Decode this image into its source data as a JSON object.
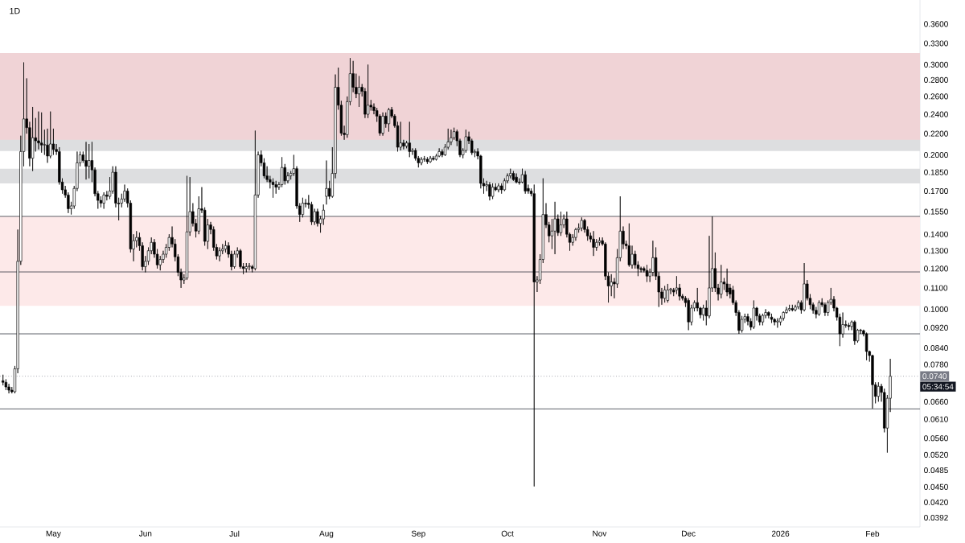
{
  "chart_data": {
    "type": "candlestick",
    "title": "1D",
    "color": "#000000",
    "log": true,
    "xlim": [
      "2025-04-13",
      "2026-02-17"
    ],
    "ylim": [
      0.0376,
      0.401
    ],
    "xticks": [
      {
        "value": "2025-05-01",
        "label": "May"
      },
      {
        "value": "2025-06-01",
        "label": "Jun"
      },
      {
        "value": "2025-07-01",
        "label": "Jul"
      },
      {
        "value": "2025-08-01",
        "label": "Aug"
      },
      {
        "value": "2025-09-01",
        "label": "Sep"
      },
      {
        "value": "2025-10-01",
        "label": "Oct"
      },
      {
        "value": "2025-11-01",
        "label": "Nov"
      },
      {
        "value": "2025-12-01",
        "label": "Dec"
      },
      {
        "value": "2026-01-01",
        "label": "2026"
      },
      {
        "value": "2026-02-01",
        "label": "Feb"
      }
    ],
    "yticks": [
      {
        "value": 0.0392,
        "label": "0.0392"
      },
      {
        "value": 0.042,
        "label": "0.0420"
      },
      {
        "value": 0.045,
        "label": "0.0450"
      },
      {
        "value": 0.0485,
        "label": "0.0485"
      },
      {
        "value": 0.052,
        "label": "0.0520"
      },
      {
        "value": 0.056,
        "label": "0.0560"
      },
      {
        "value": 0.061,
        "label": "0.0610"
      },
      {
        "value": 0.066,
        "label": "0.0660"
      },
      {
        "value": 0.078,
        "label": "0.0780"
      },
      {
        "value": 0.084,
        "label": "0.0840"
      },
      {
        "value": 0.092,
        "label": "0.0920"
      },
      {
        "value": 0.1,
        "label": "0.1000"
      },
      {
        "value": 0.11,
        "label": "0.1100"
      },
      {
        "value": 0.12,
        "label": "0.1200"
      },
      {
        "value": 0.13,
        "label": "0.1300"
      },
      {
        "value": 0.14,
        "label": "0.1400"
      },
      {
        "value": 0.155,
        "label": "0.1550"
      },
      {
        "value": 0.17,
        "label": "0.1700"
      },
      {
        "value": 0.185,
        "label": "0.1850"
      },
      {
        "value": 0.2,
        "label": "0.2000"
      },
      {
        "value": 0.22,
        "label": "0.2200"
      },
      {
        "value": 0.24,
        "label": "0.2400"
      },
      {
        "value": 0.26,
        "label": "0.2600"
      },
      {
        "value": 0.28,
        "label": "0.2800"
      },
      {
        "value": 0.3,
        "label": "0.3000"
      },
      {
        "value": 0.33,
        "label": "0.3300"
      },
      {
        "value": 0.36,
        "label": "0.3600"
      }
    ],
    "bands": [
      {
        "axis": "y",
        "from": 0.2035,
        "to": 0.227,
        "color": "#dddee0"
      },
      {
        "axis": "y",
        "from": 0.176,
        "to": 0.188,
        "color": "#dddee0"
      },
      {
        "axis": "y",
        "from": 0.214,
        "to": 0.316,
        "color": "#f0d3d6"
      },
      {
        "axis": "y",
        "from": 0.1015,
        "to": 0.1517,
        "color": "#fde9e9"
      }
    ],
    "ref_lines": [
      {
        "axis": "y",
        "value": 0.1517,
        "color": "#363a45",
        "line_style": "solid"
      },
      {
        "axis": "y",
        "value": 0.1182,
        "color": "#363a45",
        "line_style": "solid"
      },
      {
        "axis": "y",
        "value": 0.0895,
        "color": "#363a45",
        "line_style": "solid"
      },
      {
        "axis": "y",
        "value": 0.0639,
        "color": "#363a45",
        "line_style": "solid"
      },
      {
        "axis": "y",
        "value": 0.074,
        "label": "0.0740",
        "color": "#787b86",
        "line_style": "dotted"
      }
    ],
    "annotations": [
      "05:34:54"
    ],
    "x": [
      "2025-04-14",
      "2025-04-15",
      "2025-04-16",
      "2025-04-17",
      "2025-04-18",
      "2025-04-19",
      "2025-04-20",
      "2025-04-21",
      "2025-04-22",
      "2025-04-23",
      "2025-04-24",
      "2025-04-25",
      "2025-04-26",
      "2025-04-27",
      "2025-04-28",
      "2025-04-29",
      "2025-04-30",
      "2025-05-01",
      "2025-05-02",
      "2025-05-03",
      "2025-05-04",
      "2025-05-05",
      "2025-05-06",
      "2025-05-07",
      "2025-05-08",
      "2025-05-09",
      "2025-05-10",
      "2025-05-11",
      "2025-05-12",
      "2025-05-13",
      "2025-05-14",
      "2025-05-15",
      "2025-05-16",
      "2025-05-17",
      "2025-05-18",
      "2025-05-19",
      "2025-05-20",
      "2025-05-21",
      "2025-05-22",
      "2025-05-23",
      "2025-05-24",
      "2025-05-25",
      "2025-05-26",
      "2025-05-27",
      "2025-05-28",
      "2025-05-29",
      "2025-05-30",
      "2025-05-31",
      "2025-06-01",
      "2025-06-02",
      "2025-06-03",
      "2025-06-04",
      "2025-06-05",
      "2025-06-06",
      "2025-06-07",
      "2025-06-08",
      "2025-06-09",
      "2025-06-10",
      "2025-06-11",
      "2025-06-12",
      "2025-06-13",
      "2025-06-14",
      "2025-06-15",
      "2025-06-16",
      "2025-06-17",
      "2025-06-18",
      "2025-06-19",
      "2025-06-20",
      "2025-06-21",
      "2025-06-22",
      "2025-06-23",
      "2025-06-24",
      "2025-06-25",
      "2025-06-26",
      "2025-06-27",
      "2025-06-28",
      "2025-06-29",
      "2025-06-30",
      "2025-07-01",
      "2025-07-02",
      "2025-07-03",
      "2025-07-04",
      "2025-07-05",
      "2025-07-06",
      "2025-07-07",
      "2025-07-08",
      "2025-07-09",
      "2025-07-10",
      "2025-07-11",
      "2025-07-12",
      "2025-07-13",
      "2025-07-14",
      "2025-07-15",
      "2025-07-16",
      "2025-07-17",
      "2025-07-18",
      "2025-07-19",
      "2025-07-20",
      "2025-07-21",
      "2025-07-22",
      "2025-07-23",
      "2025-07-24",
      "2025-07-25",
      "2025-07-26",
      "2025-07-27",
      "2025-07-28",
      "2025-07-29",
      "2025-07-30",
      "2025-07-31",
      "2025-08-01",
      "2025-08-02",
      "2025-08-03",
      "2025-08-04",
      "2025-08-05",
      "2025-08-06",
      "2025-08-07",
      "2025-08-08",
      "2025-08-09",
      "2025-08-10",
      "2025-08-11",
      "2025-08-12",
      "2025-08-13",
      "2025-08-14",
      "2025-08-15",
      "2025-08-16",
      "2025-08-17",
      "2025-08-18",
      "2025-08-19",
      "2025-08-20",
      "2025-08-21",
      "2025-08-22",
      "2025-08-23",
      "2025-08-24",
      "2025-08-25",
      "2025-08-26",
      "2025-08-27",
      "2025-08-28",
      "2025-08-29",
      "2025-08-30",
      "2025-08-31",
      "2025-09-01",
      "2025-09-02",
      "2025-09-03",
      "2025-09-04",
      "2025-09-05",
      "2025-09-06",
      "2025-09-07",
      "2025-09-08",
      "2025-09-09",
      "2025-09-10",
      "2025-09-11",
      "2025-09-12",
      "2025-09-13",
      "2025-09-14",
      "2025-09-15",
      "2025-09-16",
      "2025-09-17",
      "2025-09-18",
      "2025-09-19",
      "2025-09-20",
      "2025-09-21",
      "2025-09-22",
      "2025-09-23",
      "2025-09-24",
      "2025-09-25",
      "2025-09-26",
      "2025-09-27",
      "2025-09-28",
      "2025-09-29",
      "2025-09-30",
      "2025-10-01",
      "2025-10-02",
      "2025-10-03",
      "2025-10-04",
      "2025-10-05",
      "2025-10-06",
      "2025-10-07",
      "2025-10-08",
      "2025-10-09",
      "2025-10-10",
      "2025-10-11",
      "2025-10-12",
      "2025-10-13",
      "2025-10-14",
      "2025-10-15",
      "2025-10-16",
      "2025-10-17",
      "2025-10-18",
      "2025-10-19",
      "2025-10-20",
      "2025-10-21",
      "2025-10-22",
      "2025-10-23",
      "2025-10-24",
      "2025-10-25",
      "2025-10-26",
      "2025-10-27",
      "2025-10-28",
      "2025-10-29",
      "2025-10-30",
      "2025-10-31",
      "2025-11-01",
      "2025-11-02",
      "2025-11-03",
      "2025-11-04",
      "2025-11-05",
      "2025-11-06",
      "2025-11-07",
      "2025-11-08",
      "2025-11-09",
      "2025-11-10",
      "2025-11-11",
      "2025-11-12",
      "2025-11-13",
      "2025-11-14",
      "2025-11-15",
      "2025-11-16",
      "2025-11-17",
      "2025-11-18",
      "2025-11-19",
      "2025-11-20",
      "2025-11-21",
      "2025-11-22",
      "2025-11-23",
      "2025-11-24",
      "2025-11-25",
      "2025-11-26",
      "2025-11-27",
      "2025-11-28",
      "2025-11-29",
      "2025-11-30",
      "2025-12-01",
      "2025-12-02",
      "2025-12-03",
      "2025-12-04",
      "2025-12-05",
      "2025-12-06",
      "2025-12-07",
      "2025-12-08",
      "2025-12-09",
      "2025-12-10",
      "2025-12-11",
      "2025-12-12",
      "2025-12-13",
      "2025-12-14",
      "2025-12-15",
      "2025-12-16",
      "2025-12-17",
      "2025-12-18",
      "2025-12-19",
      "2025-12-20",
      "2025-12-21",
      "2025-12-22",
      "2025-12-23",
      "2025-12-24",
      "2025-12-25",
      "2025-12-26",
      "2025-12-27",
      "2025-12-28",
      "2025-12-29",
      "2025-12-30",
      "2025-12-31",
      "2026-01-01",
      "2026-01-02",
      "2026-01-03",
      "2026-01-04",
      "2026-01-05",
      "2026-01-06",
      "2026-01-07",
      "2026-01-08",
      "2026-01-09",
      "2026-01-10",
      "2026-01-11",
      "2026-01-12",
      "2026-01-13",
      "2026-01-14",
      "2026-01-15",
      "2026-01-16",
      "2026-01-17",
      "2026-01-18",
      "2026-01-19",
      "2026-01-20",
      "2026-01-21",
      "2026-01-22",
      "2026-01-23",
      "2026-01-24",
      "2026-01-25",
      "2026-01-26",
      "2026-01-27",
      "2026-01-28",
      "2026-01-29",
      "2026-01-30",
      "2026-01-31",
      "2026-02-01",
      "2026-02-02",
      "2026-02-03",
      "2026-02-04",
      "2026-02-05",
      "2026-02-06",
      "2026-02-07"
    ],
    "ohlc": [
      [
        0.0725,
        0.0745,
        0.071,
        0.072
      ],
      [
        0.072,
        0.073,
        0.0695,
        0.0705
      ],
      [
        0.0705,
        0.0715,
        0.0685,
        0.0695
      ],
      [
        0.0695,
        0.0705,
        0.0685,
        0.069
      ],
      [
        0.069,
        0.0775,
        0.0685,
        0.0765
      ],
      [
        0.0765,
        0.143,
        0.075,
        0.124
      ],
      [
        0.124,
        0.218,
        0.122,
        0.203
      ],
      [
        0.203,
        0.303,
        0.19,
        0.235
      ],
      [
        0.235,
        0.282,
        0.22,
        0.226
      ],
      [
        0.226,
        0.232,
        0.19,
        0.197
      ],
      [
        0.197,
        0.248,
        0.186,
        0.216
      ],
      [
        0.216,
        0.236,
        0.203,
        0.213
      ],
      [
        0.213,
        0.243,
        0.205,
        0.211
      ],
      [
        0.211,
        0.242,
        0.202,
        0.209
      ],
      [
        0.209,
        0.224,
        0.2,
        0.2095
      ],
      [
        0.209,
        0.225,
        0.193,
        0.199
      ],
      [
        0.199,
        0.243,
        0.197,
        0.21
      ],
      [
        0.21,
        0.225,
        0.2,
        0.205
      ],
      [
        0.205,
        0.21,
        0.2,
        0.203
      ],
      [
        0.203,
        0.207,
        0.175,
        0.177
      ],
      [
        0.177,
        0.18,
        0.168,
        0.171
      ],
      [
        0.171,
        0.174,
        0.165,
        0.167
      ],
      [
        0.167,
        0.169,
        0.154,
        0.157
      ],
      [
        0.157,
        0.162,
        0.153,
        0.159
      ],
      [
        0.159,
        0.174,
        0.157,
        0.172
      ],
      [
        0.172,
        0.203,
        0.17,
        0.193
      ],
      [
        0.193,
        0.203,
        0.19,
        0.2
      ],
      [
        0.2,
        0.203,
        0.193,
        0.195
      ],
      [
        0.195,
        0.212,
        0.179,
        0.19
      ],
      [
        0.19,
        0.21,
        0.18,
        0.195
      ],
      [
        0.195,
        0.212,
        0.177,
        0.187
      ],
      [
        0.187,
        0.189,
        0.166,
        0.168
      ],
      [
        0.168,
        0.17,
        0.157,
        0.163
      ],
      [
        0.163,
        0.166,
        0.158,
        0.161
      ],
      [
        0.161,
        0.169,
        0.157,
        0.167
      ],
      [
        0.167,
        0.17,
        0.163,
        0.166
      ],
      [
        0.166,
        0.181,
        0.164,
        0.17
      ],
      [
        0.17,
        0.19,
        0.168,
        0.185
      ],
      [
        0.185,
        0.19,
        0.158,
        0.161
      ],
      [
        0.161,
        0.165,
        0.149,
        0.1605
      ],
      [
        0.161,
        0.168,
        0.158,
        0.164
      ],
      [
        0.164,
        0.175,
        0.162,
        0.17
      ],
      [
        0.17,
        0.172,
        0.158,
        0.161
      ],
      [
        0.161,
        0.163,
        0.129,
        0.131
      ],
      [
        0.131,
        0.14,
        0.124,
        0.136
      ],
      [
        0.136,
        0.142,
        0.132,
        0.138
      ],
      [
        0.138,
        0.141,
        0.13,
        0.133
      ],
      [
        0.133,
        0.135,
        0.119,
        0.121
      ],
      [
        0.121,
        0.127,
        0.118,
        0.124
      ],
      [
        0.124,
        0.132,
        0.122,
        0.13
      ],
      [
        0.13,
        0.138,
        0.128,
        0.135
      ],
      [
        0.135,
        0.137,
        0.126,
        0.128
      ],
      [
        0.128,
        0.131,
        0.12,
        0.122
      ],
      [
        0.122,
        0.127,
        0.119,
        0.125
      ],
      [
        0.125,
        0.13,
        0.123,
        0.128
      ],
      [
        0.128,
        0.134,
        0.126,
        0.132
      ],
      [
        0.132,
        0.14,
        0.13,
        0.138
      ],
      [
        0.138,
        0.145,
        0.132,
        0.134
      ],
      [
        0.134,
        0.137,
        0.124,
        0.1265
      ],
      [
        0.1265,
        0.128,
        0.116,
        0.118
      ],
      [
        0.118,
        0.12,
        0.11,
        0.114
      ],
      [
        0.114,
        0.117,
        0.112,
        0.115
      ],
      [
        0.115,
        0.182,
        0.114,
        0.1415
      ],
      [
        0.1415,
        0.181,
        0.139,
        0.155
      ],
      [
        0.155,
        0.161,
        0.145,
        0.147
      ],
      [
        0.147,
        0.15,
        0.138,
        0.142
      ],
      [
        0.142,
        0.166,
        0.14,
        0.157
      ],
      [
        0.157,
        0.173,
        0.154,
        0.156
      ],
      [
        0.156,
        0.158,
        0.133,
        0.1356
      ],
      [
        0.1356,
        0.15,
        0.131,
        0.146
      ],
      [
        0.146,
        0.148,
        0.14,
        0.143
      ],
      [
        0.143,
        0.145,
        0.13,
        0.132
      ],
      [
        0.132,
        0.134,
        0.125,
        0.127
      ],
      [
        0.127,
        0.132,
        0.124,
        0.13
      ],
      [
        0.13,
        0.134,
        0.128,
        0.131
      ],
      [
        0.131,
        0.136,
        0.129,
        0.133
      ],
      [
        0.133,
        0.135,
        0.126,
        0.128
      ],
      [
        0.128,
        0.13,
        0.119,
        0.121
      ],
      [
        0.121,
        0.13,
        0.12,
        0.128
      ],
      [
        0.128,
        0.132,
        0.126,
        0.13
      ],
      [
        0.13,
        0.131,
        0.12,
        0.121
      ],
      [
        0.121,
        0.123,
        0.117,
        0.12
      ],
      [
        0.12,
        0.123,
        0.118,
        0.121
      ],
      [
        0.121,
        0.123,
        0.119,
        0.1215
      ],
      [
        0.121,
        0.122,
        0.118,
        0.12
      ],
      [
        0.12,
        0.223,
        0.119,
        0.167
      ],
      [
        0.167,
        0.203,
        0.165,
        0.2
      ],
      [
        0.2,
        0.204,
        0.19,
        0.193
      ],
      [
        0.193,
        0.197,
        0.18,
        0.182
      ],
      [
        0.182,
        0.19,
        0.177,
        0.179
      ],
      [
        0.179,
        0.182,
        0.172,
        0.177
      ],
      [
        0.177,
        0.18,
        0.165,
        0.175
      ],
      [
        0.175,
        0.178,
        0.168,
        0.173
      ],
      [
        0.173,
        0.177,
        0.171,
        0.175
      ],
      [
        0.175,
        0.198,
        0.173,
        0.189
      ],
      [
        0.189,
        0.192,
        0.175,
        0.178
      ],
      [
        0.178,
        0.185,
        0.176,
        0.182
      ],
      [
        0.182,
        0.186,
        0.179,
        0.184
      ],
      [
        0.184,
        0.2,
        0.182,
        0.188
      ],
      [
        0.188,
        0.19,
        0.157,
        0.159
      ],
      [
        0.159,
        0.161,
        0.148,
        0.153
      ],
      [
        0.153,
        0.165,
        0.151,
        0.161
      ],
      [
        0.161,
        0.164,
        0.158,
        0.1605
      ],
      [
        0.161,
        0.167,
        0.157,
        0.16
      ],
      [
        0.16,
        0.162,
        0.146,
        0.148
      ],
      [
        0.148,
        0.157,
        0.146,
        0.155
      ],
      [
        0.155,
        0.157,
        0.145,
        0.147
      ],
      [
        0.147,
        0.152,
        0.141,
        0.15
      ],
      [
        0.15,
        0.16,
        0.146,
        0.156
      ],
      [
        0.166,
        0.195,
        0.16,
        0.172
      ],
      [
        0.172,
        0.178,
        0.164,
        0.166
      ],
      [
        0.166,
        0.207,
        0.165,
        0.184
      ],
      [
        0.184,
        0.287,
        0.18,
        0.271
      ],
      [
        0.271,
        0.296,
        0.245,
        0.25
      ],
      [
        0.25,
        0.255,
        0.218,
        0.2205
      ],
      [
        0.2205,
        0.228,
        0.214,
        0.219
      ],
      [
        0.219,
        0.26,
        0.216,
        0.254
      ],
      [
        0.254,
        0.309,
        0.25,
        0.288
      ],
      [
        0.288,
        0.305,
        0.265,
        0.271
      ],
      [
        0.271,
        0.288,
        0.258,
        0.263
      ],
      [
        0.263,
        0.285,
        0.248,
        0.271
      ],
      [
        0.271,
        0.275,
        0.26,
        0.266
      ],
      [
        0.266,
        0.27,
        0.236,
        0.24
      ],
      [
        0.24,
        0.3,
        0.236,
        0.25
      ],
      [
        0.25,
        0.256,
        0.244,
        0.248
      ],
      [
        0.248,
        0.252,
        0.24,
        0.244
      ],
      [
        0.244,
        0.247,
        0.232,
        0.238
      ],
      [
        0.238,
        0.24,
        0.218,
        0.2205
      ],
      [
        0.2205,
        0.242,
        0.218,
        0.238
      ],
      [
        0.238,
        0.242,
        0.226,
        0.23
      ],
      [
        0.23,
        0.247,
        0.222,
        0.245
      ],
      [
        0.245,
        0.248,
        0.236,
        0.238
      ],
      [
        0.238,
        0.24,
        0.226,
        0.228
      ],
      [
        0.228,
        0.232,
        0.203,
        0.207
      ],
      [
        0.207,
        0.232,
        0.204,
        0.211
      ],
      [
        0.211,
        0.214,
        0.205,
        0.208
      ],
      [
        0.208,
        0.213,
        0.206,
        0.211
      ],
      [
        0.211,
        0.232,
        0.198,
        0.203
      ],
      [
        0.203,
        0.206,
        0.2,
        0.204
      ],
      [
        0.204,
        0.206,
        0.195,
        0.197
      ],
      [
        0.197,
        0.199,
        0.189,
        0.193
      ],
      [
        0.193,
        0.198,
        0.191,
        0.196
      ],
      [
        0.196,
        0.199,
        0.194,
        0.1965
      ],
      [
        0.196,
        0.198,
        0.192,
        0.194
      ],
      [
        0.194,
        0.199,
        0.193,
        0.197
      ],
      [
        0.197,
        0.199,
        0.195,
        0.196
      ],
      [
        0.196,
        0.201,
        0.195,
        0.199
      ],
      [
        0.199,
        0.206,
        0.198,
        0.203
      ],
      [
        0.203,
        0.205,
        0.198,
        0.2
      ],
      [
        0.2,
        0.21,
        0.199,
        0.207
      ],
      [
        0.207,
        0.225,
        0.205,
        0.212
      ],
      [
        0.212,
        0.224,
        0.209,
        0.216
      ],
      [
        0.216,
        0.226,
        0.214,
        0.222
      ],
      [
        0.222,
        0.224,
        0.208,
        0.213
      ],
      [
        0.213,
        0.215,
        0.198,
        0.2
      ],
      [
        0.2,
        0.206,
        0.197,
        0.204
      ],
      [
        0.204,
        0.224,
        0.202,
        0.217
      ],
      [
        0.217,
        0.222,
        0.21,
        0.213
      ],
      [
        0.213,
        0.215,
        0.2,
        0.202
      ],
      [
        0.202,
        0.205,
        0.198,
        0.203
      ],
      [
        0.203,
        0.206,
        0.196,
        0.199
      ],
      [
        0.199,
        0.2,
        0.172,
        0.176
      ],
      [
        0.176,
        0.18,
        0.168,
        0.174
      ],
      [
        0.174,
        0.178,
        0.17,
        0.175
      ],
      [
        0.175,
        0.177,
        0.163,
        0.166
      ],
      [
        0.166,
        0.176,
        0.164,
        0.173
      ],
      [
        0.173,
        0.176,
        0.17,
        0.171
      ],
      [
        0.171,
        0.176,
        0.169,
        0.174
      ],
      [
        0.174,
        0.176,
        0.168,
        0.171
      ],
      [
        0.171,
        0.18,
        0.17,
        0.178
      ],
      [
        0.178,
        0.184,
        0.176,
        0.182
      ],
      [
        0.182,
        0.188,
        0.18,
        0.184
      ],
      [
        0.184,
        0.186,
        0.178,
        0.179
      ],
      [
        0.181,
        0.184,
        0.176,
        0.177
      ],
      [
        0.177,
        0.18,
        0.175,
        0.1765
      ],
      [
        0.177,
        0.188,
        0.176,
        0.183
      ],
      [
        0.183,
        0.186,
        0.168,
        0.17
      ],
      [
        0.172,
        0.175,
        0.168,
        0.17
      ],
      [
        0.17,
        0.172,
        0.166,
        0.168
      ],
      [
        0.168,
        0.175,
        0.0451,
        0.113
      ],
      [
        0.113,
        0.116,
        0.108,
        0.114
      ],
      [
        0.114,
        0.128,
        0.112,
        0.125
      ],
      [
        0.125,
        0.18,
        0.123,
        0.153
      ],
      [
        0.153,
        0.161,
        0.144,
        0.146
      ],
      [
        0.146,
        0.148,
        0.135,
        0.139
      ],
      [
        0.139,
        0.15,
        0.131,
        0.142
      ],
      [
        0.142,
        0.162,
        0.128,
        0.15
      ],
      [
        0.15,
        0.153,
        0.139,
        0.141
      ],
      [
        0.141,
        0.155,
        0.139,
        0.146
      ],
      [
        0.146,
        0.153,
        0.144,
        0.15
      ],
      [
        0.15,
        0.155,
        0.138,
        0.14
      ],
      [
        0.14,
        0.141,
        0.13,
        0.135
      ],
      [
        0.135,
        0.14,
        0.133,
        0.138
      ],
      [
        0.138,
        0.144,
        0.136,
        0.143
      ],
      [
        0.143,
        0.147,
        0.141,
        0.144
      ],
      [
        0.144,
        0.151,
        0.142,
        0.149
      ],
      [
        0.149,
        0.15,
        0.141,
        0.143
      ],
      [
        0.143,
        0.145,
        0.136,
        0.139
      ],
      [
        0.139,
        0.141,
        0.135,
        0.137
      ],
      [
        0.137,
        0.142,
        0.127,
        0.132
      ],
      [
        0.132,
        0.137,
        0.13,
        0.135
      ],
      [
        0.135,
        0.138,
        0.133,
        0.136
      ],
      [
        0.136,
        0.138,
        0.133,
        0.134
      ],
      [
        0.134,
        0.135,
        0.114,
        0.116
      ],
      [
        0.116,
        0.118,
        0.103,
        0.111
      ],
      [
        0.111,
        0.117,
        0.106,
        0.113
      ],
      [
        0.113,
        0.115,
        0.105,
        0.112
      ],
      [
        0.112,
        0.131,
        0.11,
        0.126
      ],
      [
        0.126,
        0.166,
        0.124,
        0.142
      ],
      [
        0.142,
        0.145,
        0.131,
        0.134
      ],
      [
        0.134,
        0.136,
        0.131,
        0.133
      ],
      [
        0.133,
        0.147,
        0.121,
        0.122
      ],
      [
        0.122,
        0.133,
        0.12,
        0.128
      ],
      [
        0.128,
        0.13,
        0.12,
        0.122
      ],
      [
        0.122,
        0.124,
        0.116,
        0.12
      ],
      [
        0.12,
        0.121,
        0.118,
        0.1195
      ],
      [
        0.12,
        0.121,
        0.118,
        0.119
      ],
      [
        0.119,
        0.122,
        0.113,
        0.116
      ],
      [
        0.116,
        0.12,
        0.113,
        0.118
      ],
      [
        0.118,
        0.136,
        0.116,
        0.126
      ],
      [
        0.126,
        0.132,
        0.114,
        0.116
      ],
      [
        0.116,
        0.118,
        0.101,
        0.108
      ],
      [
        0.108,
        0.11,
        0.102,
        0.105
      ],
      [
        0.105,
        0.111,
        0.103,
        0.109
      ],
      [
        0.104,
        0.112,
        0.103,
        0.109
      ],
      [
        0.109,
        0.11,
        0.107,
        0.1095
      ],
      [
        0.109,
        0.11,
        0.106,
        0.108
      ],
      [
        0.109,
        0.116,
        0.107,
        0.11
      ],
      [
        0.11,
        0.112,
        0.104,
        0.106
      ],
      [
        0.106,
        0.107,
        0.104,
        0.105
      ],
      [
        0.105,
        0.106,
        0.101,
        0.103
      ],
      [
        0.104,
        0.105,
        0.091,
        0.0944
      ],
      [
        0.0944,
        0.102,
        0.093,
        0.1005
      ],
      [
        0.1005,
        0.104,
        0.099,
        0.103
      ],
      [
        0.103,
        0.11,
        0.099,
        0.1005
      ],
      [
        0.1005,
        0.101,
        0.096,
        0.0975
      ],
      [
        0.0975,
        0.102,
        0.095,
        0.1005
      ],
      [
        0.1005,
        0.104,
        0.093,
        0.097
      ],
      [
        0.097,
        0.139,
        0.096,
        0.11
      ],
      [
        0.11,
        0.1517,
        0.108,
        0.12
      ],
      [
        0.12,
        0.129,
        0.108,
        0.11
      ],
      [
        0.11,
        0.112,
        0.104,
        0.107
      ],
      [
        0.107,
        0.122,
        0.105,
        0.113
      ],
      [
        0.113,
        0.115,
        0.109,
        0.112
      ],
      [
        0.112,
        0.12,
        0.106,
        0.108
      ],
      [
        0.11,
        0.112,
        0.105,
        0.107
      ],
      [
        0.109,
        0.111,
        0.102,
        0.103
      ],
      [
        0.103,
        0.104,
        0.097,
        0.0985
      ],
      [
        0.0985,
        0.0995,
        0.0895,
        0.0909
      ],
      [
        0.0909,
        0.097,
        0.09,
        0.0955
      ],
      [
        0.0955,
        0.098,
        0.094,
        0.0967
      ],
      [
        0.0967,
        0.098,
        0.093,
        0.0947
      ],
      [
        0.0947,
        0.096,
        0.091,
        0.0923
      ],
      [
        0.0923,
        0.104,
        0.0915,
        0.1005
      ],
      [
        0.1005,
        0.101,
        0.095,
        0.097
      ],
      [
        0.097,
        0.098,
        0.093,
        0.0944
      ],
      [
        0.0944,
        0.098,
        0.093,
        0.0972
      ],
      [
        0.0972,
        0.1,
        0.096,
        0.0985
      ],
      [
        0.0985,
        0.099,
        0.096,
        0.0972
      ],
      [
        0.0965,
        0.098,
        0.094,
        0.0955
      ],
      [
        0.0955,
        0.096,
        0.093,
        0.0944
      ],
      [
        0.0944,
        0.096,
        0.092,
        0.0948
      ],
      [
        0.0944,
        0.097,
        0.093,
        0.096
      ],
      [
        0.096,
        0.099,
        0.095,
        0.0985
      ],
      [
        0.0985,
        0.101,
        0.098,
        0.0997
      ],
      [
        0.0997,
        0.102,
        0.099,
        0.1003
      ],
      [
        0.1003,
        0.102,
        0.099,
        0.0997
      ],
      [
        0.0997,
        0.102,
        0.099,
        0.101
      ],
      [
        0.101,
        0.104,
        0.1,
        0.103
      ],
      [
        0.103,
        0.104,
        0.098,
        0.0997
      ],
      [
        0.0997,
        0.123,
        0.099,
        0.112
      ],
      [
        0.112,
        0.114,
        0.104,
        0.105
      ],
      [
        0.105,
        0.107,
        0.1,
        0.102
      ],
      [
        0.102,
        0.103,
        0.098,
        0.0995
      ],
      [
        0.0995,
        0.101,
        0.096,
        0.0978
      ],
      [
        0.0978,
        0.104,
        0.097,
        0.103
      ],
      [
        0.103,
        0.105,
        0.101,
        0.102
      ],
      [
        0.102,
        0.103,
        0.097,
        0.0985
      ],
      [
        0.0985,
        0.104,
        0.097,
        0.103
      ],
      [
        0.103,
        0.11,
        0.102,
        0.1045
      ],
      [
        0.1045,
        0.106,
        0.099,
        0.1005
      ],
      [
        0.1005,
        0.101,
        0.095,
        0.0965
      ],
      [
        0.0965,
        0.098,
        0.0847,
        0.0895
      ],
      [
        0.0895,
        0.0985,
        0.088,
        0.0933
      ],
      [
        0.0933,
        0.095,
        0.092,
        0.093
      ],
      [
        0.093,
        0.094,
        0.091,
        0.0925
      ],
      [
        0.0925,
        0.095,
        0.091,
        0.0944
      ],
      [
        0.0944,
        0.095,
        0.0852,
        0.0867
      ],
      [
        0.0867,
        0.0915,
        0.086,
        0.091
      ],
      [
        0.091,
        0.0915,
        0.0895,
        0.0908
      ],
      [
        0.0908,
        0.0912,
        0.0885,
        0.0895
      ],
      [
        0.0895,
        0.09,
        0.0795,
        0.0827
      ],
      [
        0.0827,
        0.083,
        0.079,
        0.0812
      ],
      [
        0.0812,
        0.0815,
        0.064,
        0.0712
      ],
      [
        0.0712,
        0.072,
        0.0655,
        0.0676
      ],
      [
        0.0676,
        0.072,
        0.066,
        0.0707
      ],
      [
        0.0707,
        0.0715,
        0.066,
        0.0688
      ],
      [
        0.0688,
        0.07,
        0.0575,
        0.0586
      ],
      [
        0.0586,
        0.068,
        0.0525,
        0.067
      ],
      [
        0.067,
        0.08,
        0.063,
        0.074
      ]
    ]
  }
}
